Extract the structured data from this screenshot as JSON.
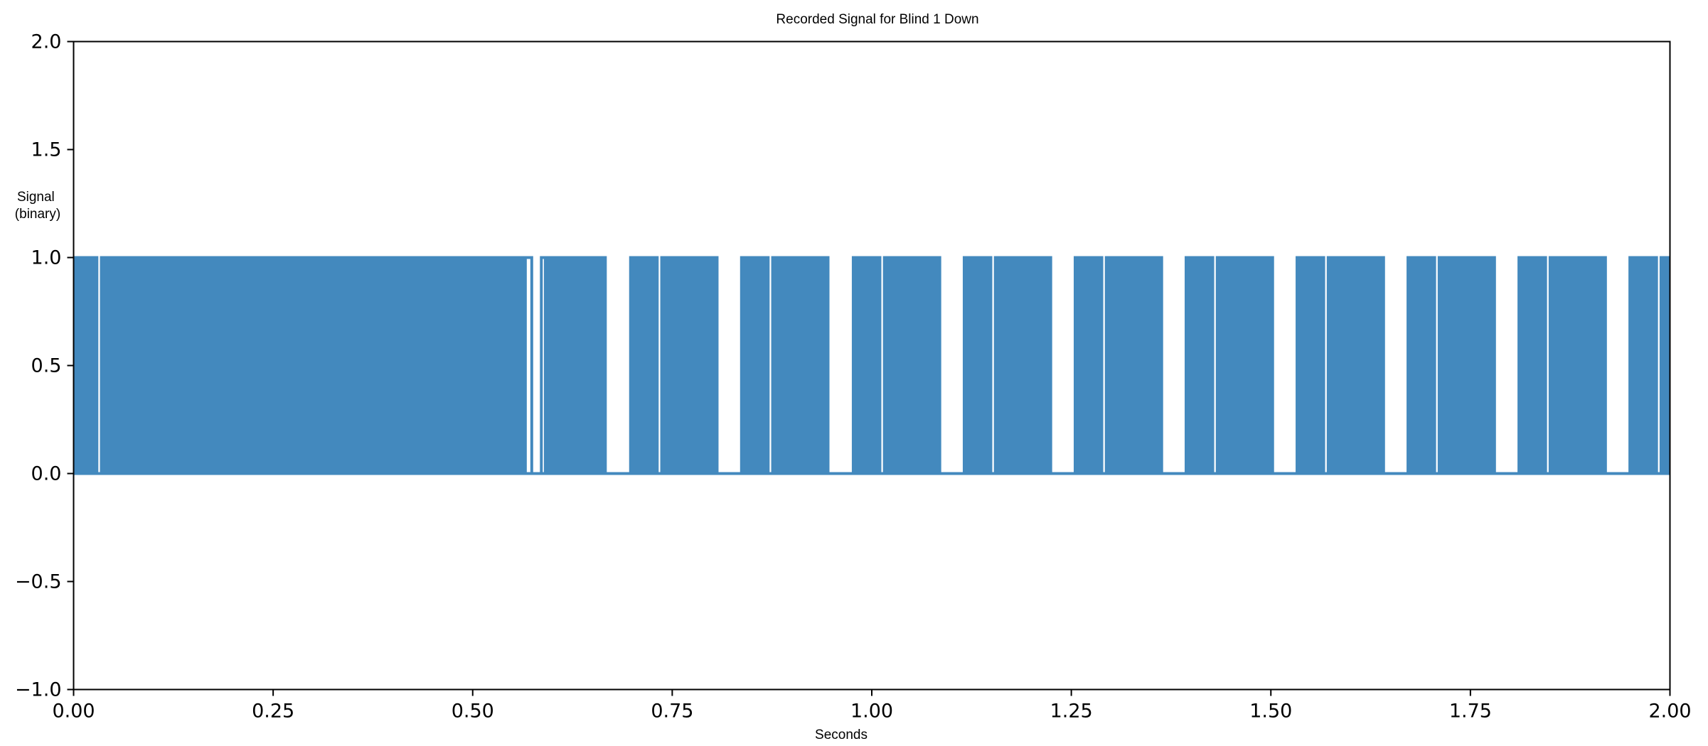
{
  "chart_data": {
    "type": "line",
    "title": "Recorded Signal for Blind 1 Down",
    "xlabel": "Seconds",
    "ylabel": [
      "Signal",
      "(binary)"
    ],
    "xlim": [
      0.0,
      2.0
    ],
    "ylim": [
      -1.0,
      2.0
    ],
    "x_ticks": [
      "0.00",
      "0.25",
      "0.50",
      "0.75",
      "1.00",
      "1.25",
      "1.50",
      "1.75",
      "2.00"
    ],
    "x_tick_values": [
      0.0,
      0.25,
      0.5,
      0.75,
      1.0,
      1.25,
      1.5,
      1.75,
      2.0
    ],
    "y_ticks": [
      "−1.0",
      "−0.5",
      "0.0",
      "0.5",
      "1.0",
      "1.5",
      "2.0"
    ],
    "y_tick_values": [
      -1.0,
      -0.5,
      0.0,
      0.5,
      1.0,
      1.5,
      2.0
    ],
    "grid": false,
    "series": [
      {
        "color": "#4389be",
        "low": 0,
        "high": 1,
        "burst_intervals": [
          [
            0.0,
            0.031
          ],
          [
            0.033,
            0.566
          ],
          [
            0.591,
            0.668
          ],
          [
            0.696,
            0.733
          ],
          [
            0.735,
            0.808
          ],
          [
            0.835,
            0.872
          ],
          [
            0.874,
            0.947
          ],
          [
            0.975,
            1.012
          ],
          [
            1.014,
            1.087
          ],
          [
            1.114,
            1.151
          ],
          [
            1.153,
            1.226
          ],
          [
            1.253,
            1.29
          ],
          [
            1.292,
            1.365
          ],
          [
            1.392,
            1.429
          ],
          [
            1.431,
            1.504
          ],
          [
            1.531,
            1.568
          ],
          [
            1.57,
            1.643
          ],
          [
            1.67,
            1.707
          ],
          [
            1.709,
            1.782
          ],
          [
            1.809,
            1.846
          ],
          [
            1.848,
            1.921
          ],
          [
            1.948,
            1.985
          ],
          [
            1.987,
            2.0
          ]
        ],
        "sustained_high_intervals": [
          [
            0.566,
            0.574
          ],
          [
            0.586,
            0.591
          ]
        ]
      }
    ]
  }
}
